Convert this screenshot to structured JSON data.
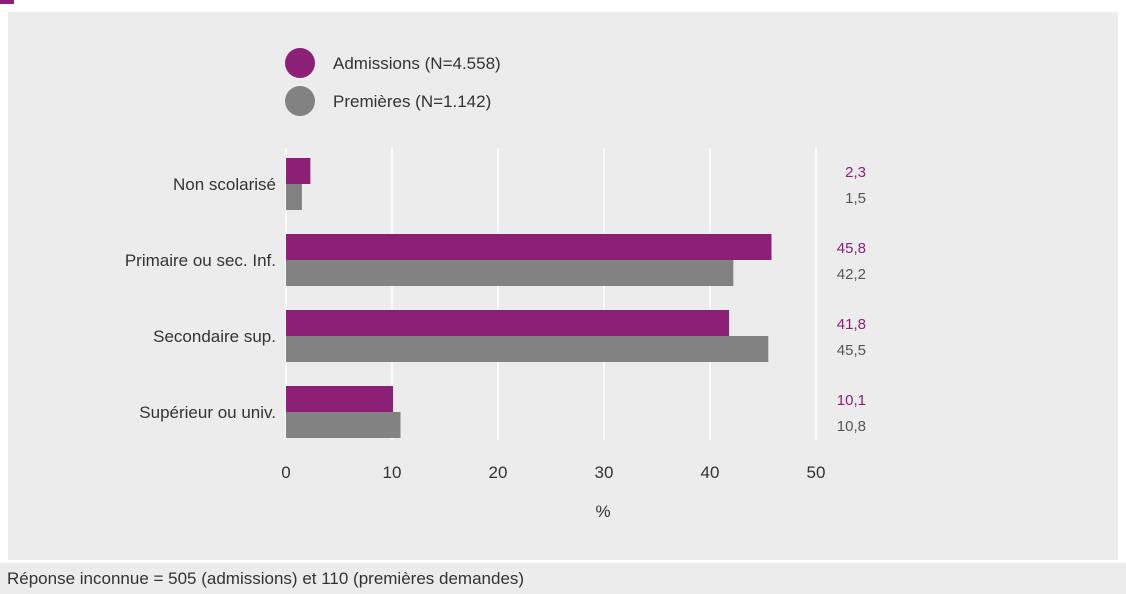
{
  "footnote": "Réponse inconnue = 505 (admissions) et 110 (premières demandes)",
  "chart_data": {
    "type": "bar",
    "orientation": "horizontal",
    "categories": [
      "Non scolarisé",
      "Primaire ou sec. Inf.",
      "Secondaire sup.",
      "Supérieur ou univ."
    ],
    "series": [
      {
        "name": "Admissions (N=4.558)",
        "color": "#8b2076",
        "values": [
          2.3,
          45.8,
          41.8,
          10.1
        ],
        "labels": [
          "2,3",
          "45,8",
          "41,8",
          "10,1"
        ]
      },
      {
        "name": "Premières (N=1.142)",
        "color": "#828282",
        "values": [
          1.5,
          42.2,
          45.5,
          10.8
        ],
        "labels": [
          "1,5",
          "42,2",
          "45,5",
          "10,8"
        ]
      }
    ],
    "xticks": [
      "0",
      "10",
      "20",
      "30",
      "40",
      "50"
    ],
    "xlim": [
      0,
      50
    ],
    "xlabel": "%",
    "grid": true,
    "legend_position": "top-left"
  }
}
